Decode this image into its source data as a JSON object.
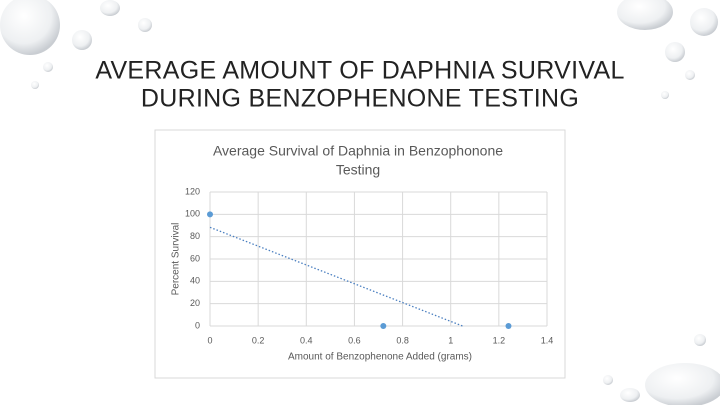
{
  "slide": {
    "title": [
      "AVERAGE AMOUNT OF DAPHNIA SURVIVAL",
      "DURING BENZOPHENONE TESTING"
    ]
  },
  "chart_data": {
    "type": "scatter",
    "title": [
      "Average Survival of Daphnia in Benzophonone",
      "Testing"
    ],
    "x_label": "Amount of Benzophenone Added (grams)",
    "y_label": "Percent Survival",
    "x": [
      0,
      0.72,
      1.24
    ],
    "values": [
      100,
      0,
      0
    ],
    "color": "#5b9bd5",
    "trendline": "linear",
    "trendline_color": "#4a7fc0",
    "xlim": [
      0,
      1.4
    ],
    "xticks": [
      0,
      0.2,
      0.4,
      0.6,
      0.8,
      1,
      1.2,
      1.4
    ],
    "ylim": [
      0,
      120
    ],
    "yticks": [
      0,
      20,
      40,
      60,
      80,
      100,
      120
    ],
    "grid": true
  }
}
